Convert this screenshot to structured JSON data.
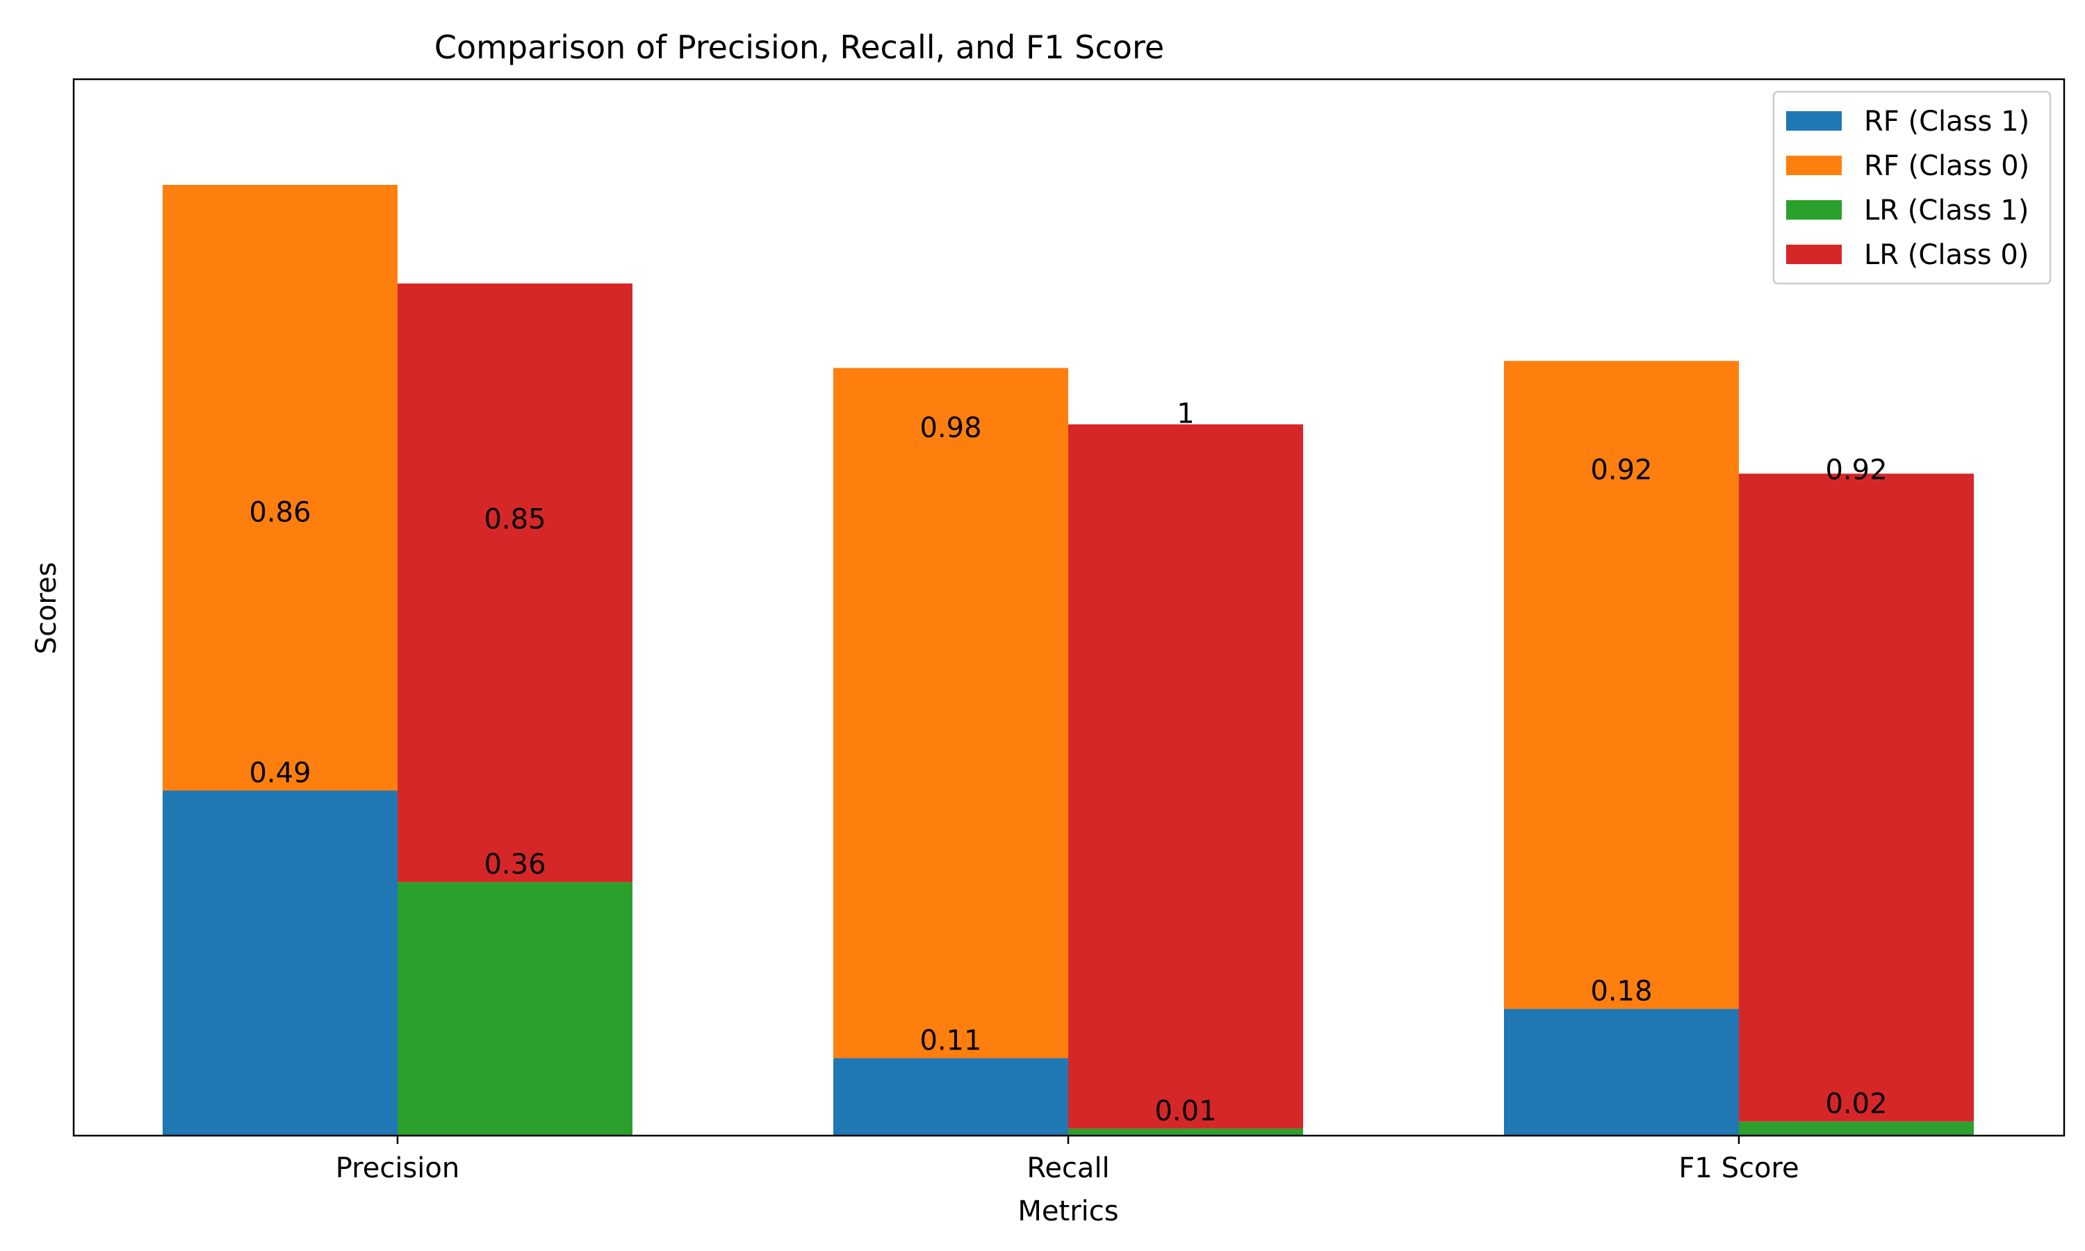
{
  "chart_data": {
    "type": "bar",
    "stacked": true,
    "title": "Comparison of Precision, Recall, and F1 Score",
    "xlabel": "Metrics",
    "ylabel": "Scores",
    "categories": [
      "Precision",
      "Recall",
      "F1 Score"
    ],
    "ylim": [
      0,
      1.5
    ],
    "grid": false,
    "legend_position": "top-right",
    "groups": [
      {
        "name": "RF",
        "stack": [
          {
            "series": "RF (Class 1)",
            "values": [
              0.49,
              0.11,
              0.18
            ],
            "color": "#1f77b4"
          },
          {
            "series": "RF (Class 0)",
            "values": [
              0.86,
              0.98,
              0.92
            ],
            "color": "#ff7f0e"
          }
        ]
      },
      {
        "name": "LR",
        "stack": [
          {
            "series": "LR (Class 1)",
            "values": [
              0.36,
              0.01,
              0.02
            ],
            "color": "#2ca02c"
          },
          {
            "series": "LR (Class 0)",
            "values": [
              0.85,
              1.0,
              0.92
            ],
            "color": "#d62728"
          }
        ]
      }
    ],
    "legend": [
      "RF (Class 1)",
      "RF (Class 0)",
      "LR (Class 1)",
      "LR (Class 0)"
    ]
  }
}
